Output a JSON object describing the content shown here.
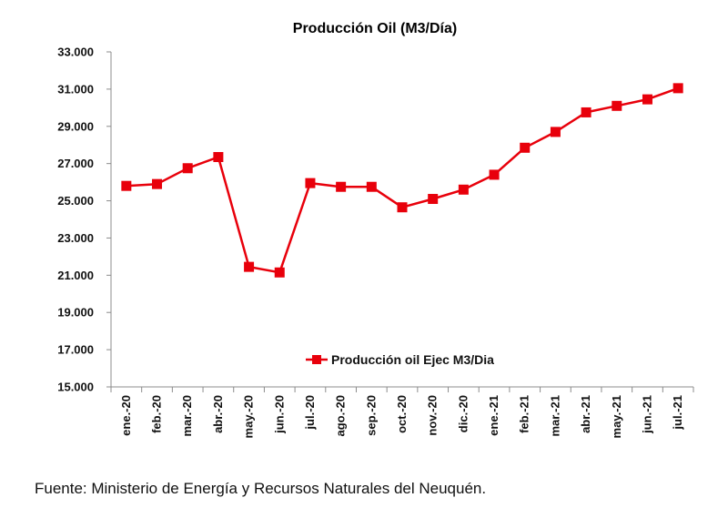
{
  "chart_data": {
    "type": "line",
    "title": "Producción Oil (M3/Día)",
    "xlabel": "",
    "ylabel": "",
    "ylim": [
      15000,
      33000
    ],
    "yticks": [
      15000,
      17000,
      19000,
      21000,
      23000,
      25000,
      27000,
      29000,
      31000,
      33000
    ],
    "ytick_labels": [
      "15.000",
      "17.000",
      "19.000",
      "21.000",
      "23.000",
      "25.000",
      "27.000",
      "29.000",
      "31.000",
      "33.000"
    ],
    "categories": [
      "ene.-20",
      "feb.-20",
      "mar.-20",
      "abr.-20",
      "may.-20",
      "jun.-20",
      "jul.-20",
      "ago.-20",
      "sep.-20",
      "oct.-20",
      "nov.-20",
      "dic.-20",
      "ene.-21",
      "feb.-21",
      "mar.-21",
      "abr.-21",
      "may.-21",
      "jun.-21",
      "jul.-21"
    ],
    "series": [
      {
        "name": "Producción oil Ejec M3/Dia",
        "color": "#e8000b",
        "values": [
          25800,
          25900,
          26750,
          27350,
          21450,
          21150,
          25950,
          25750,
          25750,
          24650,
          25100,
          25600,
          26400,
          27850,
          28700,
          29750,
          30100,
          30450,
          31050
        ]
      }
    ],
    "legend_position": "lower-center",
    "grid": false
  },
  "source_note": "Fuente: Ministerio de Energía y Recursos Naturales del Neuquén."
}
